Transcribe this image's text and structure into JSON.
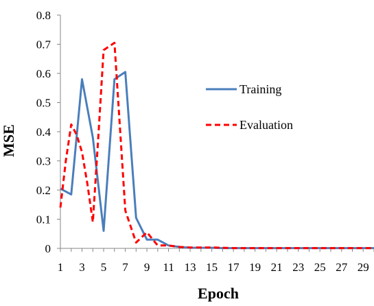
{
  "chart_data": {
    "type": "line",
    "title": "",
    "xlabel": "Epoch",
    "ylabel": "MSE",
    "xlim": [
      1,
      30
    ],
    "ylim": [
      0,
      0.8
    ],
    "x": [
      1,
      2,
      3,
      4,
      5,
      6,
      7,
      8,
      9,
      10,
      11,
      12,
      13,
      14,
      15,
      16,
      17,
      18,
      19,
      20,
      21,
      22,
      23,
      24,
      25,
      26,
      27,
      28,
      29,
      30
    ],
    "x_tick_labels": [
      "1",
      "3",
      "5",
      "7",
      "9",
      "11",
      "13",
      "15",
      "17",
      "19",
      "21",
      "23",
      "25",
      "27",
      "29"
    ],
    "y_tick_labels": [
      "0",
      "0.1",
      "0.2",
      "0.3",
      "0.4",
      "0.5",
      "0.6",
      "0.7",
      "0.8"
    ],
    "y_ticks": [
      0,
      0.1,
      0.2,
      0.3,
      0.4,
      0.5,
      0.6,
      0.7,
      0.8
    ],
    "grid": false,
    "legend_position": "right",
    "series": [
      {
        "name": "Training",
        "color": "#4a7ebb",
        "style": "solid",
        "values": [
          0.205,
          0.185,
          0.58,
          0.38,
          0.06,
          0.58,
          0.605,
          0.105,
          0.03,
          0.03,
          0.01,
          0.005,
          0.002,
          0.002,
          0.002,
          0.001,
          0.001,
          0.001,
          0.001,
          0.001,
          0.001,
          0.001,
          0.001,
          0.001,
          0.001,
          0.001,
          0.001,
          0.001,
          0.001,
          0.001
        ]
      },
      {
        "name": "Evaluation",
        "color": "#ff0000",
        "style": "dashed",
        "points": [
          [
            1,
            0.14
          ],
          [
            1.5,
            0.3
          ],
          [
            2,
            0.425
          ],
          [
            2.5,
            0.39
          ],
          [
            3,
            0.33
          ],
          [
            3.5,
            0.22
          ],
          [
            4,
            0.09
          ],
          [
            4.5,
            0.38
          ],
          [
            5,
            0.68
          ],
          [
            6,
            0.705
          ],
          [
            7,
            0.13
          ],
          [
            8,
            0.02
          ],
          [
            9,
            0.055
          ],
          [
            10,
            0.01
          ],
          [
            11,
            0.01
          ],
          [
            12,
            0.005
          ],
          [
            13,
            0.003
          ],
          [
            14,
            0.003
          ],
          [
            15,
            0.003
          ],
          [
            16,
            0.002
          ],
          [
            17,
            0.001
          ],
          [
            18,
            0.001
          ],
          [
            19,
            0.001
          ],
          [
            20,
            0.001
          ],
          [
            21,
            0.001
          ],
          [
            22,
            0.001
          ],
          [
            23,
            0.001
          ],
          [
            24,
            0.001
          ],
          [
            25,
            0.001
          ],
          [
            26,
            0.001
          ],
          [
            27,
            0.001
          ],
          [
            28,
            0.001
          ],
          [
            29,
            0.001
          ],
          [
            30,
            0.001
          ]
        ]
      }
    ]
  }
}
